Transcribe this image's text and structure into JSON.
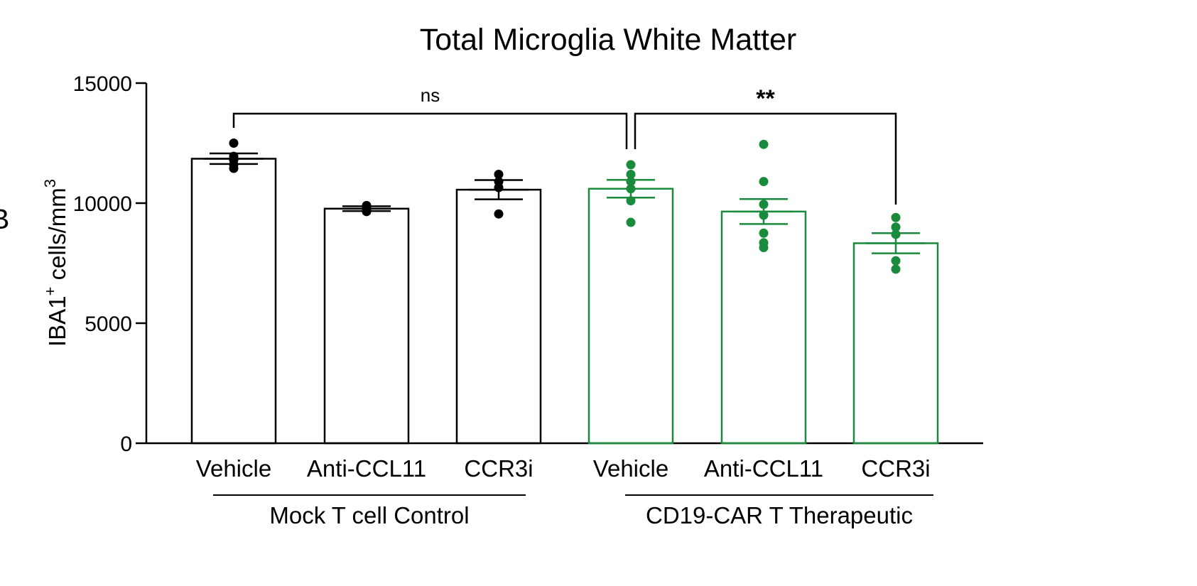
{
  "chart_data": {
    "type": "bar",
    "title": "Total Microglia White Matter",
    "ylabel": "IBA1⁺ cells/mm³",
    "ylabel_main": "IBA1",
    "ylabel_sup": "+",
    "ylabel_rest": " cells/mm",
    "ylabel_sup2": "3",
    "ylim": [
      0,
      15000
    ],
    "yticks": [
      0,
      5000,
      10000,
      15000
    ],
    "categories": [
      "Vehicle",
      "Anti-CCL11",
      "CCR3i",
      "Vehicle",
      "Anti-CCL11",
      "CCR3i"
    ],
    "groups": [
      {
        "label": "Mock T cell Control",
        "color": "#000000",
        "indices": [
          0,
          1,
          2
        ]
      },
      {
        "label": "CD19-CAR T Therapeutic",
        "color": "#1a8a3c",
        "indices": [
          3,
          4,
          5
        ]
      }
    ],
    "values": [
      11850,
      9770,
      10560,
      10600,
      9650,
      8330
    ],
    "sem": [
      220,
      100,
      400,
      370,
      520,
      420
    ],
    "points": [
      [
        12500,
        11950,
        11800,
        11600,
        11450
      ],
      [
        9900,
        9800,
        9700,
        9650
      ],
      [
        11200,
        10900,
        10650,
        9550
      ],
      [
        11600,
        11200,
        10900,
        10600,
        10100,
        9200
      ],
      [
        12450,
        10900,
        9950,
        9500,
        8750,
        8350,
        8150
      ],
      [
        9400,
        9000,
        8700,
        7600,
        7250
      ]
    ],
    "comparisons": [
      {
        "from": 0,
        "to": 3,
        "label": "ns"
      },
      {
        "from": 3,
        "to": 5,
        "label": "**"
      }
    ],
    "grid": false,
    "legend": "none"
  },
  "edge_mark": "B"
}
